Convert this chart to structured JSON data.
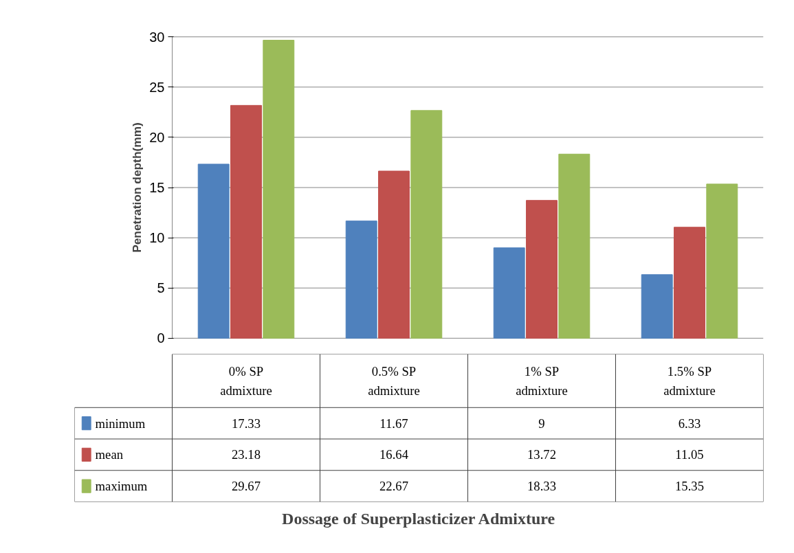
{
  "chart_data": {
    "type": "bar",
    "categories": [
      "0% SP admixture",
      "0.5% SP admixture",
      "1% SP admixture",
      "1.5% SP admixture"
    ],
    "series": [
      {
        "name": "minimum",
        "color": "#4f81bd",
        "values": [
          17.33,
          11.67,
          9,
          6.33
        ]
      },
      {
        "name": "mean",
        "color": "#c0504d",
        "values": [
          23.18,
          16.64,
          13.72,
          11.05
        ]
      },
      {
        "name": "maximum",
        "color": "#9bbb59",
        "values": [
          29.67,
          22.67,
          18.33,
          15.35
        ]
      }
    ],
    "annotations": [
      "Dossage of Superplasticizer Admixture"
    ],
    "ylabel": "Penetration depth(mm)",
    "ylim": [
      0,
      30
    ],
    "yticks": [
      0,
      5,
      10,
      15,
      20,
      25,
      30
    ],
    "grid": "y",
    "legend": "bottom",
    "data_labels": true
  }
}
